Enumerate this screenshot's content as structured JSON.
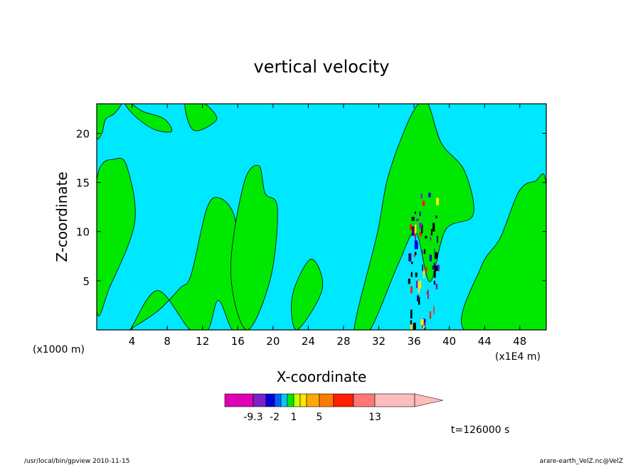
{
  "chart_data": {
    "type": "heatmap",
    "title": "vertical velocity",
    "xlabel": "X-coordinate",
    "ylabel": "Z-coordinate",
    "x_unit_left": "(x1000 m)",
    "x_unit_right": "(x1E4 m)",
    "xlim": [
      0,
      51
    ],
    "ylim": [
      0,
      23
    ],
    "x_ticks": [
      "4",
      "8",
      "12",
      "16",
      "20",
      "24",
      "28",
      "32",
      "36",
      "40",
      "44",
      "48"
    ],
    "x_tick_values": [
      4,
      8,
      12,
      16,
      20,
      24,
      28,
      32,
      36,
      40,
      44,
      48
    ],
    "y_ticks": [
      "5",
      "10",
      "15",
      "20"
    ],
    "y_tick_values": [
      5,
      10,
      15,
      20
    ],
    "background_level_color": "#00e8ff",
    "positive_level_color": "#00e800",
    "contour_line_color": "#000000",
    "positive_regions": [
      {
        "x": [
          0.0,
          0.6,
          1.0,
          2.0,
          2.8,
          2.2,
          1.0,
          0.0
        ],
        "z": [
          19.6,
          20.0,
          21.4,
          22.0,
          23.0,
          23.0,
          23.0,
          23.0
        ]
      },
      {
        "x": [
          3.2,
          4.4,
          6.5,
          8.5,
          7.6,
          5.3,
          3.9
        ],
        "z": [
          23.0,
          21.7,
          20.4,
          20.2,
          21.5,
          22.2,
          23.0
        ]
      },
      {
        "x": [
          10.0,
          11.0,
          13.6,
          12.3,
          11.4
        ],
        "z": [
          23.0,
          20.3,
          21.4,
          23.0,
          23.0
        ]
      },
      {
        "x": [
          0.0,
          1.5,
          4.3,
          3.5,
          2.2,
          0.0
        ],
        "z": [
          2.0,
          4.4,
          10.9,
          16.4,
          17.4,
          15.2
        ]
      },
      {
        "x": [
          3.7,
          6.9,
          9.4,
          10.7,
          12.5,
          14.0,
          15.6,
          16.1,
          17.1,
          15.4,
          13.8,
          12.6,
          10.6,
          6.9,
          3.8
        ],
        "z": [
          0.0,
          1.9,
          4.2,
          5.6,
          12.4,
          13.4,
          11.6,
          7.3,
          0.0,
          0.0,
          3.0,
          0.0,
          0.0,
          4.0,
          0.0
        ]
      },
      {
        "x": [
          15.2,
          16.7,
          18.4,
          19.1,
          20.5,
          19.7,
          17.0
        ],
        "z": [
          6.0,
          14.9,
          16.7,
          13.9,
          12.4,
          5.2,
          0.0
        ]
      },
      {
        "x": [
          22.2,
          24.3,
          25.6,
          22.7
        ],
        "z": [
          3.5,
          7.2,
          4.2,
          0.0
        ]
      },
      {
        "x": [
          29.2,
          31.8,
          33.0,
          35.0,
          36.5,
          37.6,
          39.1,
          41.7,
          42.7,
          39.6,
          37.8,
          36.2,
          34.3,
          31.0
        ],
        "z": [
          0.0,
          9.7,
          15.4,
          20.5,
          23.0,
          23.0,
          19.0,
          16.2,
          11.7,
          10.2,
          4.9,
          9.9,
          6.9,
          0.0
        ]
      },
      {
        "x": [
          41.7,
          43.6,
          45.8,
          47.9,
          49.7,
          51.0,
          51.0
        ],
        "z": [
          0.0,
          6.4,
          9.4,
          14.1,
          15.1,
          14.6,
          0.0
        ]
      }
    ],
    "negative_core": {
      "x_range": [
        35.3,
        38.6
      ],
      "z_range": [
        0.0,
        14.5
      ]
    },
    "colorbar_levels": [
      -9.3,
      -2,
      1,
      5,
      13
    ],
    "colorbar_labels": [
      "-9.3",
      "-2",
      "1",
      "5",
      "13"
    ],
    "colorbar_colors": [
      "#e000b4",
      "#7a20c8",
      "#0000d8",
      "#0060ff",
      "#00c8ff",
      "#00e800",
      "#c8ff00",
      "#ffe600",
      "#ffaa00",
      "#ff7a00",
      "#ff2000",
      "#ff7878",
      "#ffbcbc"
    ],
    "time_label": "t=126000 s",
    "footer_left": "/usr/local/bin/gpview   2010-11-15",
    "footer_right": "arare-earth_VelZ.nc@VelZ"
  }
}
